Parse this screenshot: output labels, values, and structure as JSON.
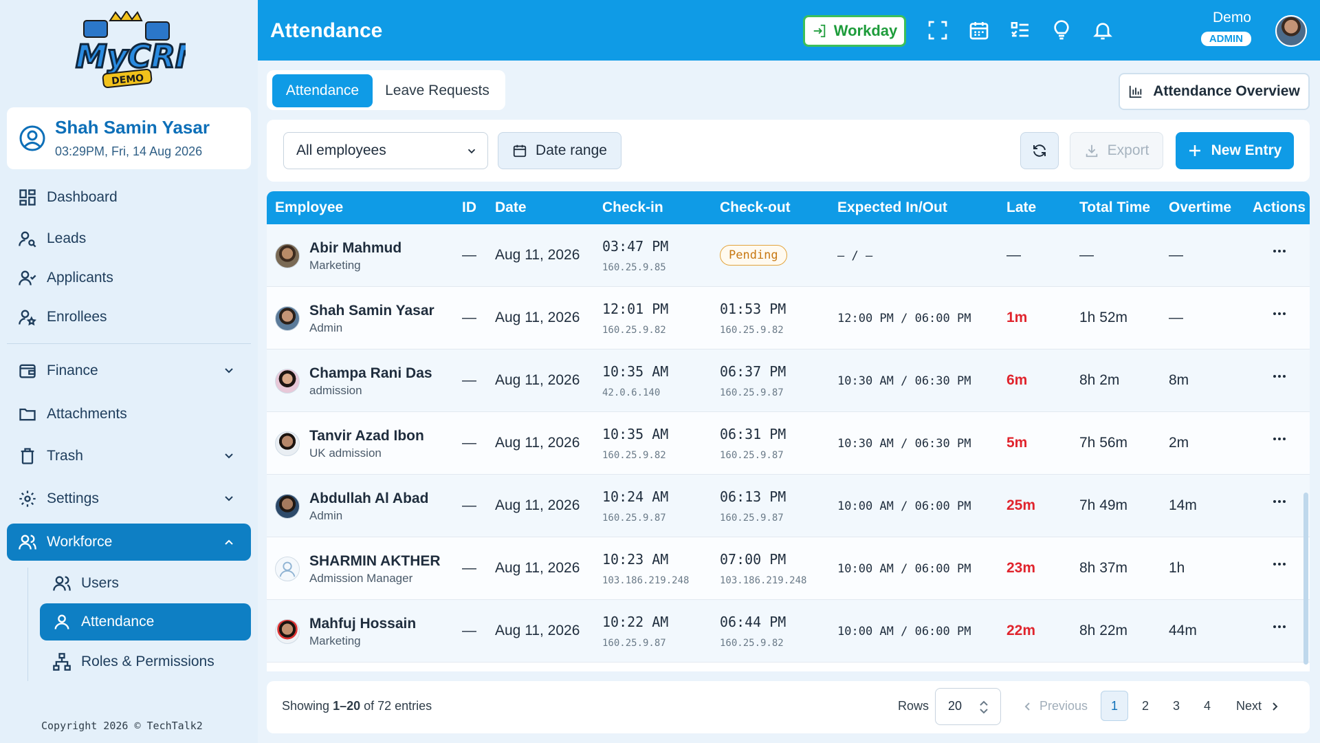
{
  "app": {
    "logo_text": "MyCRM DEMO",
    "accent_color": "#0f9be6",
    "sidebar_active_color": "#0e7fc4",
    "late_color": "#e0242d"
  },
  "profile": {
    "name": "Shah Samin Yasar",
    "datetime": "03:29PM, Fri, 14 Aug 2026"
  },
  "sidebar": {
    "items": [
      {
        "label": "Dashboard",
        "icon": "dashboard-grid-icon"
      },
      {
        "label": "Leads",
        "icon": "user-search-icon"
      },
      {
        "label": "Applicants",
        "icon": "user-check-icon"
      },
      {
        "label": "Enrollees",
        "icon": "user-star-icon"
      },
      {
        "label": "Finance",
        "icon": "wallet-icon"
      },
      {
        "label": "Attachments",
        "icon": "folder-icon"
      },
      {
        "label": "Trash",
        "icon": "trash-icon"
      },
      {
        "label": "Settings",
        "icon": "gear-icon"
      },
      {
        "label": "Workforce",
        "icon": "users-icon"
      }
    ],
    "sub_items": [
      {
        "label": "Users",
        "icon": "users-icon"
      },
      {
        "label": "Attendance",
        "icon": "user-icon"
      },
      {
        "label": "Roles & Permissions",
        "icon": "hierarchy-icon"
      }
    ],
    "copyright": "Copyright 2026 © TechTalk2"
  },
  "header": {
    "title": "Attendance",
    "workday_label": "Workday",
    "user_name": "Demo",
    "user_role": "ADMIN"
  },
  "tabs": {
    "attendance": "Attendance",
    "leave_requests": "Leave Requests",
    "overview_button": "Attendance Overview"
  },
  "filters": {
    "employee_select": "All employees",
    "date_range": "Date range",
    "export": "Export",
    "new_entry": "New Entry"
  },
  "table": {
    "columns": [
      "Employee",
      "ID",
      "Date",
      "Check-in",
      "Check-out",
      "Expected In/Out",
      "Late",
      "Total Time",
      "Overtime",
      "Actions"
    ],
    "rows": [
      {
        "name": "Abir Mahmud",
        "role": "Marketing",
        "id": "—",
        "date": "Aug 11, 2026",
        "checkin": "03:47 PM",
        "checkin_ip": "160.25.9.85",
        "checkout": "",
        "checkout_ip": "",
        "status": "Pending",
        "expected": "– / –",
        "late": "—",
        "total": "—",
        "overtime": "—"
      },
      {
        "name": "Shah Samin Yasar",
        "role": "Admin",
        "id": "—",
        "date": "Aug 11, 2026",
        "checkin": "12:01 PM",
        "checkin_ip": "160.25.9.82",
        "checkout": "01:53 PM",
        "checkout_ip": "160.25.9.82",
        "status": "",
        "expected": "12:00 PM / 06:00 PM",
        "late": "1m",
        "total": "1h 52m",
        "overtime": "—"
      },
      {
        "name": "Champa Rani Das",
        "role": "admission",
        "id": "—",
        "date": "Aug 11, 2026",
        "checkin": "10:35 AM",
        "checkin_ip": "42.0.6.140",
        "checkout": "06:37 PM",
        "checkout_ip": "160.25.9.87",
        "status": "",
        "expected": "10:30 AM / 06:30 PM",
        "late": "6m",
        "total": "8h 2m",
        "overtime": "8m"
      },
      {
        "name": "Tanvir Azad Ibon",
        "role": "UK admission",
        "id": "—",
        "date": "Aug 11, 2026",
        "checkin": "10:35 AM",
        "checkin_ip": "160.25.9.82",
        "checkout": "06:31 PM",
        "checkout_ip": "160.25.9.87",
        "status": "",
        "expected": "10:30 AM / 06:30 PM",
        "late": "5m",
        "total": "7h 56m",
        "overtime": "2m"
      },
      {
        "name": "Abdullah Al Abad",
        "role": "Admin",
        "id": "—",
        "date": "Aug 11, 2026",
        "checkin": "10:24 AM",
        "checkin_ip": "160.25.9.87",
        "checkout": "06:13 PM",
        "checkout_ip": "160.25.9.87",
        "status": "",
        "expected": "10:00 AM / 06:00 PM",
        "late": "25m",
        "total": "7h 49m",
        "overtime": "14m"
      },
      {
        "name": "SHARMIN AKTHER",
        "role": "Admission Manager",
        "id": "—",
        "date": "Aug 11, 2026",
        "checkin": "10:23 AM",
        "checkin_ip": "103.186.219.248",
        "checkout": "07:00 PM",
        "checkout_ip": "103.186.219.248",
        "status": "",
        "expected": "10:00 AM / 06:00 PM",
        "late": "23m",
        "total": "8h 37m",
        "overtime": "1h"
      },
      {
        "name": "Mahfuj Hossain",
        "role": "Marketing",
        "id": "—",
        "date": "Aug 11, 2026",
        "checkin": "10:22 AM",
        "checkin_ip": "160.25.9.87",
        "checkout": "06:44 PM",
        "checkout_ip": "160.25.9.82",
        "status": "",
        "expected": "10:00 AM / 06:00 PM",
        "late": "22m",
        "total": "8h 22m",
        "overtime": "44m"
      }
    ]
  },
  "footer": {
    "showing_prefix": "Showing ",
    "showing_range": "1–20",
    "showing_suffix": " of 72 entries",
    "rows_label": "Rows",
    "rows_value": "20",
    "previous": "Previous",
    "next": "Next",
    "pages": [
      "1",
      "2",
      "3",
      "4"
    ],
    "current_page": "1"
  }
}
